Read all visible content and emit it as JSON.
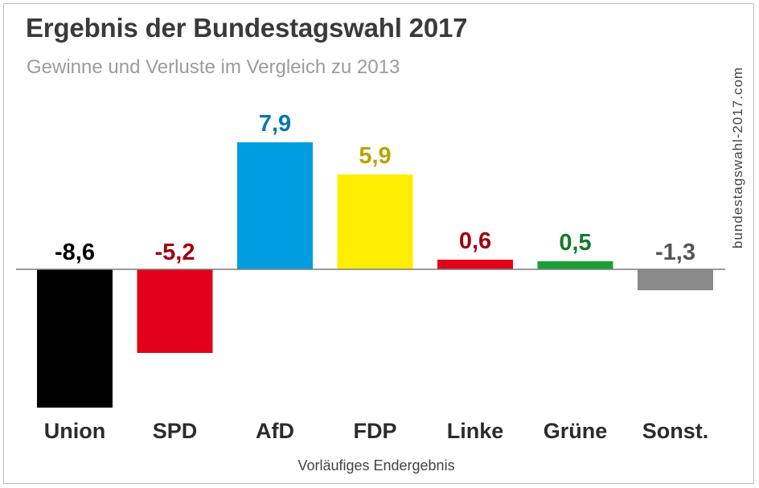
{
  "chart_data": {
    "type": "bar",
    "title": "Ergebnis der Bundestagswahl 2017",
    "subtitle": "Gewinne und Verluste im Vergleich zu 2013",
    "categories": [
      "Union",
      "SPD",
      "AfD",
      "FDP",
      "Linke",
      "Grüne",
      "Sonst."
    ],
    "values": [
      -8.6,
      -5.2,
      7.9,
      5.9,
      0.6,
      0.5,
      -1.3
    ],
    "value_labels": [
      "-8,6",
      "-5,2",
      "7,9",
      "5,9",
      "0,6",
      "0,5",
      "-1,3"
    ],
    "bar_colors": [
      "#000000",
      "#e3001b",
      "#009ee0",
      "#ffed00",
      "#e3001b",
      "#1aa037",
      "#8a8a8a"
    ],
    "label_colors": [
      "#000000",
      "#a0000f",
      "#0b77a8",
      "#b8a300",
      "#a0000f",
      "#137a29",
      "#555555"
    ],
    "ylim": [
      -8.6,
      7.9
    ],
    "xlabel": "",
    "ylabel": "",
    "grid": false,
    "source": "bundestagswahl-2017.com",
    "footnote": "Vorläufiges Endergebnis"
  }
}
